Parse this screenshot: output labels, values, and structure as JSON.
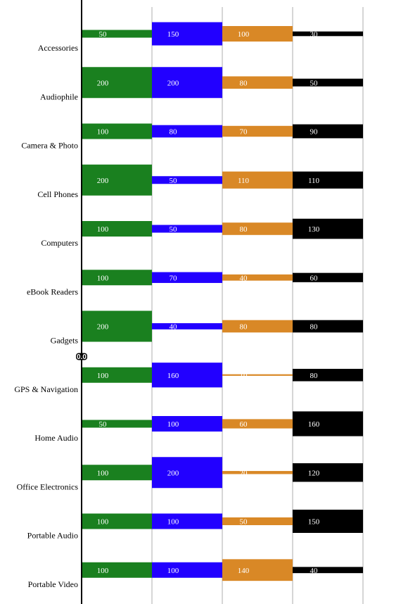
{
  "chart_data": {
    "type": "bar",
    "orientation": "horizontal",
    "layout": "small-multiples-columns",
    "categories": [
      "Accessories",
      "Audiophile",
      "Camera & Photo",
      "Cell Phones",
      "Computers",
      "eBook Readers",
      "Gadgets",
      "GPS & Navigation",
      "Home Audio",
      "Office Electronics",
      "Portable Audio",
      "Portable Video"
    ],
    "series": [
      {
        "color": "#1a801f",
        "values": [
          50,
          200,
          100,
          200,
          100,
          100,
          200,
          100,
          50,
          100,
          100,
          100
        ]
      },
      {
        "color": "#2200ff",
        "values": [
          150,
          200,
          80,
          50,
          50,
          70,
          40,
          160,
          100,
          200,
          100,
          100
        ]
      },
      {
        "color": "#d98826",
        "values": [
          100,
          80,
          70,
          110,
          80,
          40,
          80,
          10,
          60,
          20,
          50,
          140
        ]
      },
      {
        "color": "#000000",
        "values": [
          30,
          50,
          90,
          110,
          130,
          60,
          80,
          80,
          160,
          120,
          150,
          40
        ]
      }
    ],
    "axis_marker_label": "0.0",
    "marker_category": "Gadgets",
    "grid": true,
    "legend": "none"
  }
}
